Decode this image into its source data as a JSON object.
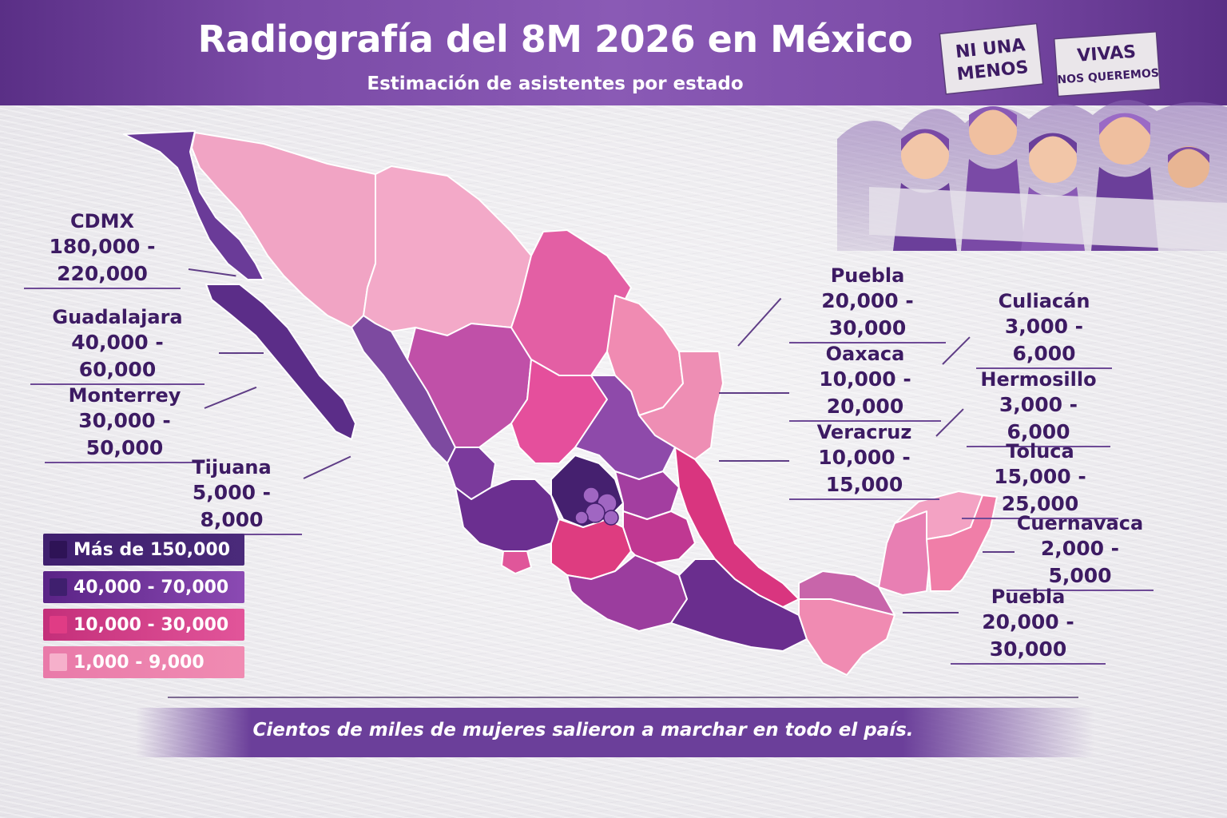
{
  "header": {
    "title": "Radiografía del 8M 2026 en México",
    "subtitle": "Estimación de asistentes por estado"
  },
  "illustration": {
    "sign_left_line1": "NI UNA",
    "sign_left_line2": "MENOS",
    "sign_right_line1": "VIVAS",
    "sign_right_line2": "NOS QUEREMOS"
  },
  "callouts": [
    {
      "city": "CDMX",
      "range": "180,000 - 220,000"
    },
    {
      "city": "Guadalajara",
      "range": "40,000 - 60,000"
    },
    {
      "city": "Monterrey",
      "range": "30,000 - 50,000"
    },
    {
      "city": "Tijuana",
      "range": "5,000 - 8,000"
    },
    {
      "city": "Puebla",
      "range": "20,000 - 30,000"
    },
    {
      "city": "Oaxaca",
      "range": "10,000 - 20,000"
    },
    {
      "city": "Veracruz",
      "range": "10,000 - 15,000"
    },
    {
      "city": "Culiacán",
      "range": "3,000 - 6,000"
    },
    {
      "city": "Hermosillo",
      "range": "3,000 - 6,000"
    },
    {
      "city": "Toluca",
      "range": "15,000 - 25,000"
    },
    {
      "city": "Cuernavaca",
      "range": "2,000 - 5,000"
    },
    {
      "city": "Puebla",
      "range": "20,000 - 30,000"
    }
  ],
  "legend": [
    {
      "label": "Más de 150,000",
      "color": "#3f1f6e"
    },
    {
      "label": "40,000 - 70,000",
      "color": "#6a2d8f"
    },
    {
      "label": "10,000 - 30,000",
      "color": "#d63a84"
    },
    {
      "label": "1,000 - 9,000",
      "color": "#f08bb2"
    }
  ],
  "footer": {
    "text": "Cientos de miles de mujeres salieron a marchar en todo el país."
  }
}
